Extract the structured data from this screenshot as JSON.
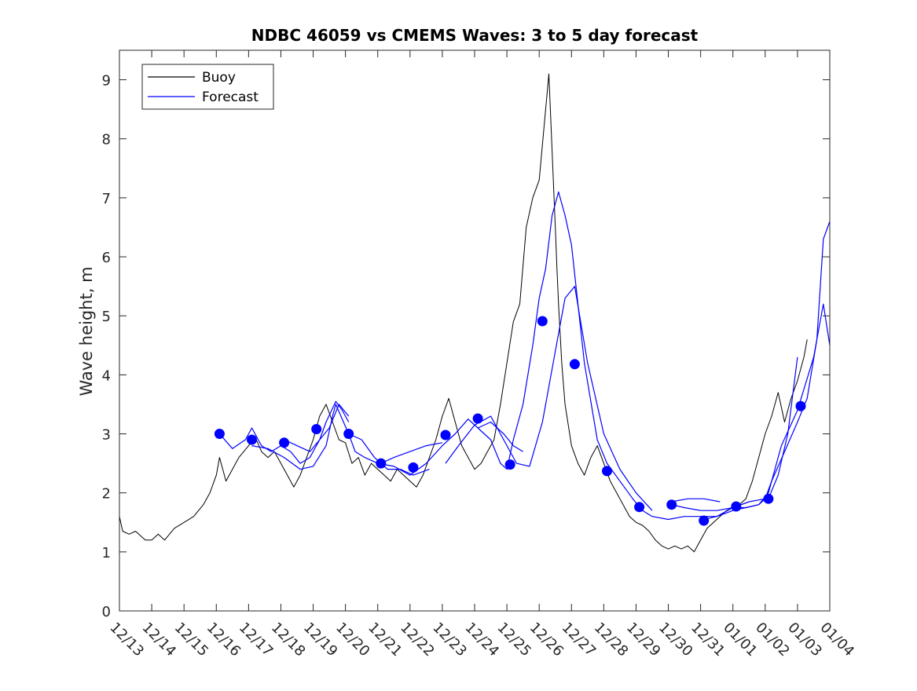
{
  "chart_data": {
    "type": "line",
    "title": "NDBC 46059 vs CMEMS Waves: 3 to 5 day forecast",
    "xlabel": "",
    "ylabel": "Wave height, m",
    "ylim": [
      0,
      9.5
    ],
    "xlim": [
      0,
      22
    ],
    "y_ticks": [
      0,
      1,
      2,
      3,
      4,
      5,
      6,
      7,
      8,
      9
    ],
    "x_ticks": [
      0,
      1,
      2,
      3,
      4,
      5,
      6,
      7,
      8,
      9,
      10,
      11,
      12,
      13,
      14,
      15,
      16,
      17,
      18,
      19,
      20,
      21,
      22
    ],
    "x_tick_labels": [
      "12/13",
      "12/14",
      "12/15",
      "12/16",
      "12/17",
      "12/18",
      "12/19",
      "12/20",
      "12/21",
      "12/22",
      "12/23",
      "12/24",
      "12/25",
      "12/26",
      "12/27",
      "12/28",
      "12/29",
      "12/30",
      "12/31",
      "01/01",
      "01/02",
      "01/03",
      "01/04"
    ],
    "grid": false,
    "legend": {
      "position": "top-left",
      "entries": [
        "Buoy",
        "Forecast"
      ]
    },
    "colors": {
      "buoy": "#000000",
      "forecast": "#0000ff"
    },
    "series": [
      {
        "name": "Buoy",
        "color": "#000000",
        "x": [
          0,
          0.1,
          0.3,
          0.5,
          0.8,
          1.0,
          1.2,
          1.4,
          1.7,
          2.0,
          2.3,
          2.6,
          2.8,
          3.0,
          3.1,
          3.3,
          3.5,
          3.7,
          4.0,
          4.2,
          4.4,
          4.6,
          4.8,
          5.0,
          5.2,
          5.4,
          5.6,
          5.8,
          6.0,
          6.2,
          6.4,
          6.6,
          6.8,
          7.0,
          7.2,
          7.4,
          7.6,
          7.8,
          8.0,
          8.2,
          8.4,
          8.6,
          8.8,
          9.0,
          9.2,
          9.4,
          9.6,
          9.8,
          10.0,
          10.2,
          10.4,
          10.6,
          10.8,
          11.0,
          11.2,
          11.4,
          11.6,
          11.8,
          12.0,
          12.2,
          12.4,
          12.6,
          12.8,
          13.0,
          13.2,
          13.3,
          13.4,
          13.5,
          13.55,
          13.6,
          13.7,
          13.8,
          14.0,
          14.2,
          14.4,
          14.6,
          14.8,
          15.0,
          15.2,
          15.4,
          15.6,
          15.8,
          16.0,
          16.2,
          16.4,
          16.6,
          16.8,
          17.0,
          17.2,
          17.4,
          17.6,
          17.8,
          18.0,
          18.2,
          18.4,
          18.6,
          18.8,
          19.0,
          19.2,
          19.4,
          19.6,
          19.8,
          20.0,
          20.2,
          20.4,
          20.6,
          20.8,
          21.0,
          21.2,
          21.3
        ],
        "values": [
          1.6,
          1.35,
          1.3,
          1.35,
          1.2,
          1.2,
          1.3,
          1.2,
          1.4,
          1.5,
          1.6,
          1.8,
          2.0,
          2.3,
          2.6,
          2.2,
          2.4,
          2.6,
          2.8,
          2.95,
          2.7,
          2.6,
          2.7,
          2.5,
          2.3,
          2.1,
          2.3,
          2.6,
          2.9,
          3.3,
          3.5,
          3.2,
          2.9,
          2.85,
          2.5,
          2.6,
          2.3,
          2.5,
          2.4,
          2.3,
          2.2,
          2.4,
          2.3,
          2.2,
          2.1,
          2.3,
          2.6,
          2.9,
          3.3,
          3.6,
          3.2,
          2.8,
          2.6,
          2.4,
          2.5,
          2.7,
          2.9,
          3.5,
          4.2,
          4.9,
          5.2,
          6.5,
          7.0,
          7.3,
          8.5,
          9.1,
          7.8,
          6.5,
          5.8,
          5.2,
          4.2,
          3.5,
          2.8,
          2.5,
          2.3,
          2.6,
          2.8,
          2.5,
          2.2,
          2.0,
          1.8,
          1.6,
          1.5,
          1.45,
          1.35,
          1.2,
          1.1,
          1.05,
          1.1,
          1.05,
          1.1,
          1.0,
          1.2,
          1.4,
          1.5,
          1.6,
          1.7,
          1.75,
          1.8,
          1.9,
          2.2,
          2.6,
          3.0,
          3.3,
          3.7,
          3.2,
          3.6,
          3.9,
          4.3,
          4.6
        ]
      },
      {
        "name": "Forecast",
        "color": "#0000ff",
        "segments": [
          {
            "x": [
              3.1,
              3.5,
              3.9,
              4.1,
              4.4,
              4.7,
              5.0,
              5.3,
              5.6,
              5.9,
              6.2,
              6.4,
              6.7,
              6.9,
              7.1
            ],
            "values": [
              3.0,
              2.75,
              2.9,
              3.1,
              2.8,
              2.7,
              2.8,
              2.7,
              2.5,
              2.6,
              2.9,
              3.2,
              3.55,
              3.4,
              3.2
            ]
          },
          {
            "x": [
              4.1,
              4.6,
              5.1,
              5.6,
              6.0,
              6.4,
              6.6,
              6.7,
              7.1,
              7.3,
              7.6,
              8.0,
              8.5,
              9.0,
              9.5,
              10.0,
              10.4,
              10.8,
              11.1,
              11.5,
              11.8,
              12.0,
              12.2,
              12.5,
              12.8,
              13.0,
              13.2,
              13.4,
              13.6,
              13.8,
              14.0,
              14.4,
              14.8,
              15.1,
              15.5,
              15.9,
              16.2,
              16.5,
              17.0,
              17.5,
              18.0,
              18.5,
              19.0,
              19.4,
              19.8,
              20.0,
              20.2,
              20.6,
              21.0,
              21.3,
              21.6,
              21.8,
              22.0
            ],
            "values": [
              2.8,
              2.75,
              2.6,
              2.4,
              2.45,
              2.8,
              3.3,
              3.5,
              3.0,
              2.7,
              2.6,
              2.5,
              2.45,
              2.3,
              2.5,
              2.8,
              3.0,
              3.25,
              3.1,
              2.9,
              2.5,
              2.4,
              2.9,
              3.5,
              4.5,
              5.3,
              5.8,
              6.7,
              7.1,
              6.7,
              6.2,
              4.2,
              2.9,
              2.5,
              2.2,
              1.9,
              1.7,
              1.6,
              1.55,
              1.6,
              1.6,
              1.6,
              1.7,
              1.75,
              1.8,
              1.9,
              2.2,
              2.7,
              3.2,
              3.6,
              4.6,
              6.3,
              6.6
            ]
          },
          {
            "x": [
              5.1,
              5.5,
              5.9,
              6.2,
              6.5,
              6.8,
              7.1
            ],
            "values": [
              2.9,
              2.8,
              2.7,
              2.9,
              3.1,
              3.5,
              3.3
            ]
          },
          {
            "x": [
              7.1,
              7.5,
              7.9,
              8.3,
              8.7,
              9.1,
              9.6
            ],
            "values": [
              3.0,
              2.9,
              2.6,
              2.4,
              2.4,
              2.3,
              2.4
            ]
          },
          {
            "x": [
              8.1,
              8.5,
              9.0,
              9.5,
              10.0
            ],
            "values": [
              2.5,
              2.6,
              2.7,
              2.8,
              2.85
            ]
          },
          {
            "x": [
              10.1,
              10.5,
              11.0,
              11.5,
              11.9,
              12.3,
              12.7,
              13.1,
              13.5,
              13.8,
              14.1,
              14.5,
              15.0,
              15.5,
              16.0,
              16.5
            ],
            "values": [
              2.5,
              2.8,
              3.15,
              3.3,
              2.9,
              2.5,
              2.45,
              3.2,
              4.4,
              5.3,
              5.5,
              4.2,
              3.0,
              2.4,
              2.0,
              1.7
            ]
          },
          {
            "x": [
              11.1,
              11.5,
              11.9,
              12.2,
              12.5
            ],
            "values": [
              3.1,
              3.2,
              3.0,
              2.8,
              2.7
            ]
          },
          {
            "x": [
              17.1,
              17.5,
              18.0,
              18.5,
              19.0,
              19.4,
              19.8,
              20.1,
              20.5,
              21.0,
              21.5,
              21.8,
              22.0
            ],
            "values": [
              1.8,
              1.75,
              1.7,
              1.7,
              1.75,
              1.75,
              1.8,
              2.0,
              2.8,
              3.4,
              4.3,
              5.2,
              4.5
            ]
          },
          {
            "x": [
              17.1,
              17.6,
              18.1,
              18.6
            ],
            "values": [
              1.85,
              1.9,
              1.9,
              1.85
            ]
          },
          {
            "x": [
              18.1,
              18.5,
              19.0,
              19.5,
              20.0
            ],
            "values": [
              1.55,
              1.6,
              1.75,
              1.85,
              1.9
            ]
          },
          {
            "x": [
              20.1,
              20.4,
              20.7,
              21.0
            ],
            "values": [
              1.9,
              2.3,
              3.0,
              4.3
            ]
          }
        ],
        "markers": {
          "x": [
            3.1,
            4.1,
            5.1,
            6.1,
            7.1,
            8.1,
            9.1,
            10.1,
            11.1,
            12.1,
            13.1,
            14.1,
            15.1,
            16.1,
            17.1,
            18.1,
            19.1,
            20.1,
            21.1
          ],
          "values": [
            3.0,
            2.9,
            2.85,
            3.08,
            3.0,
            2.5,
            2.43,
            2.98,
            3.26,
            2.48,
            4.91,
            4.18,
            2.37,
            1.76,
            1.8,
            1.53,
            1.77,
            1.9,
            3.47
          ]
        }
      }
    ]
  }
}
